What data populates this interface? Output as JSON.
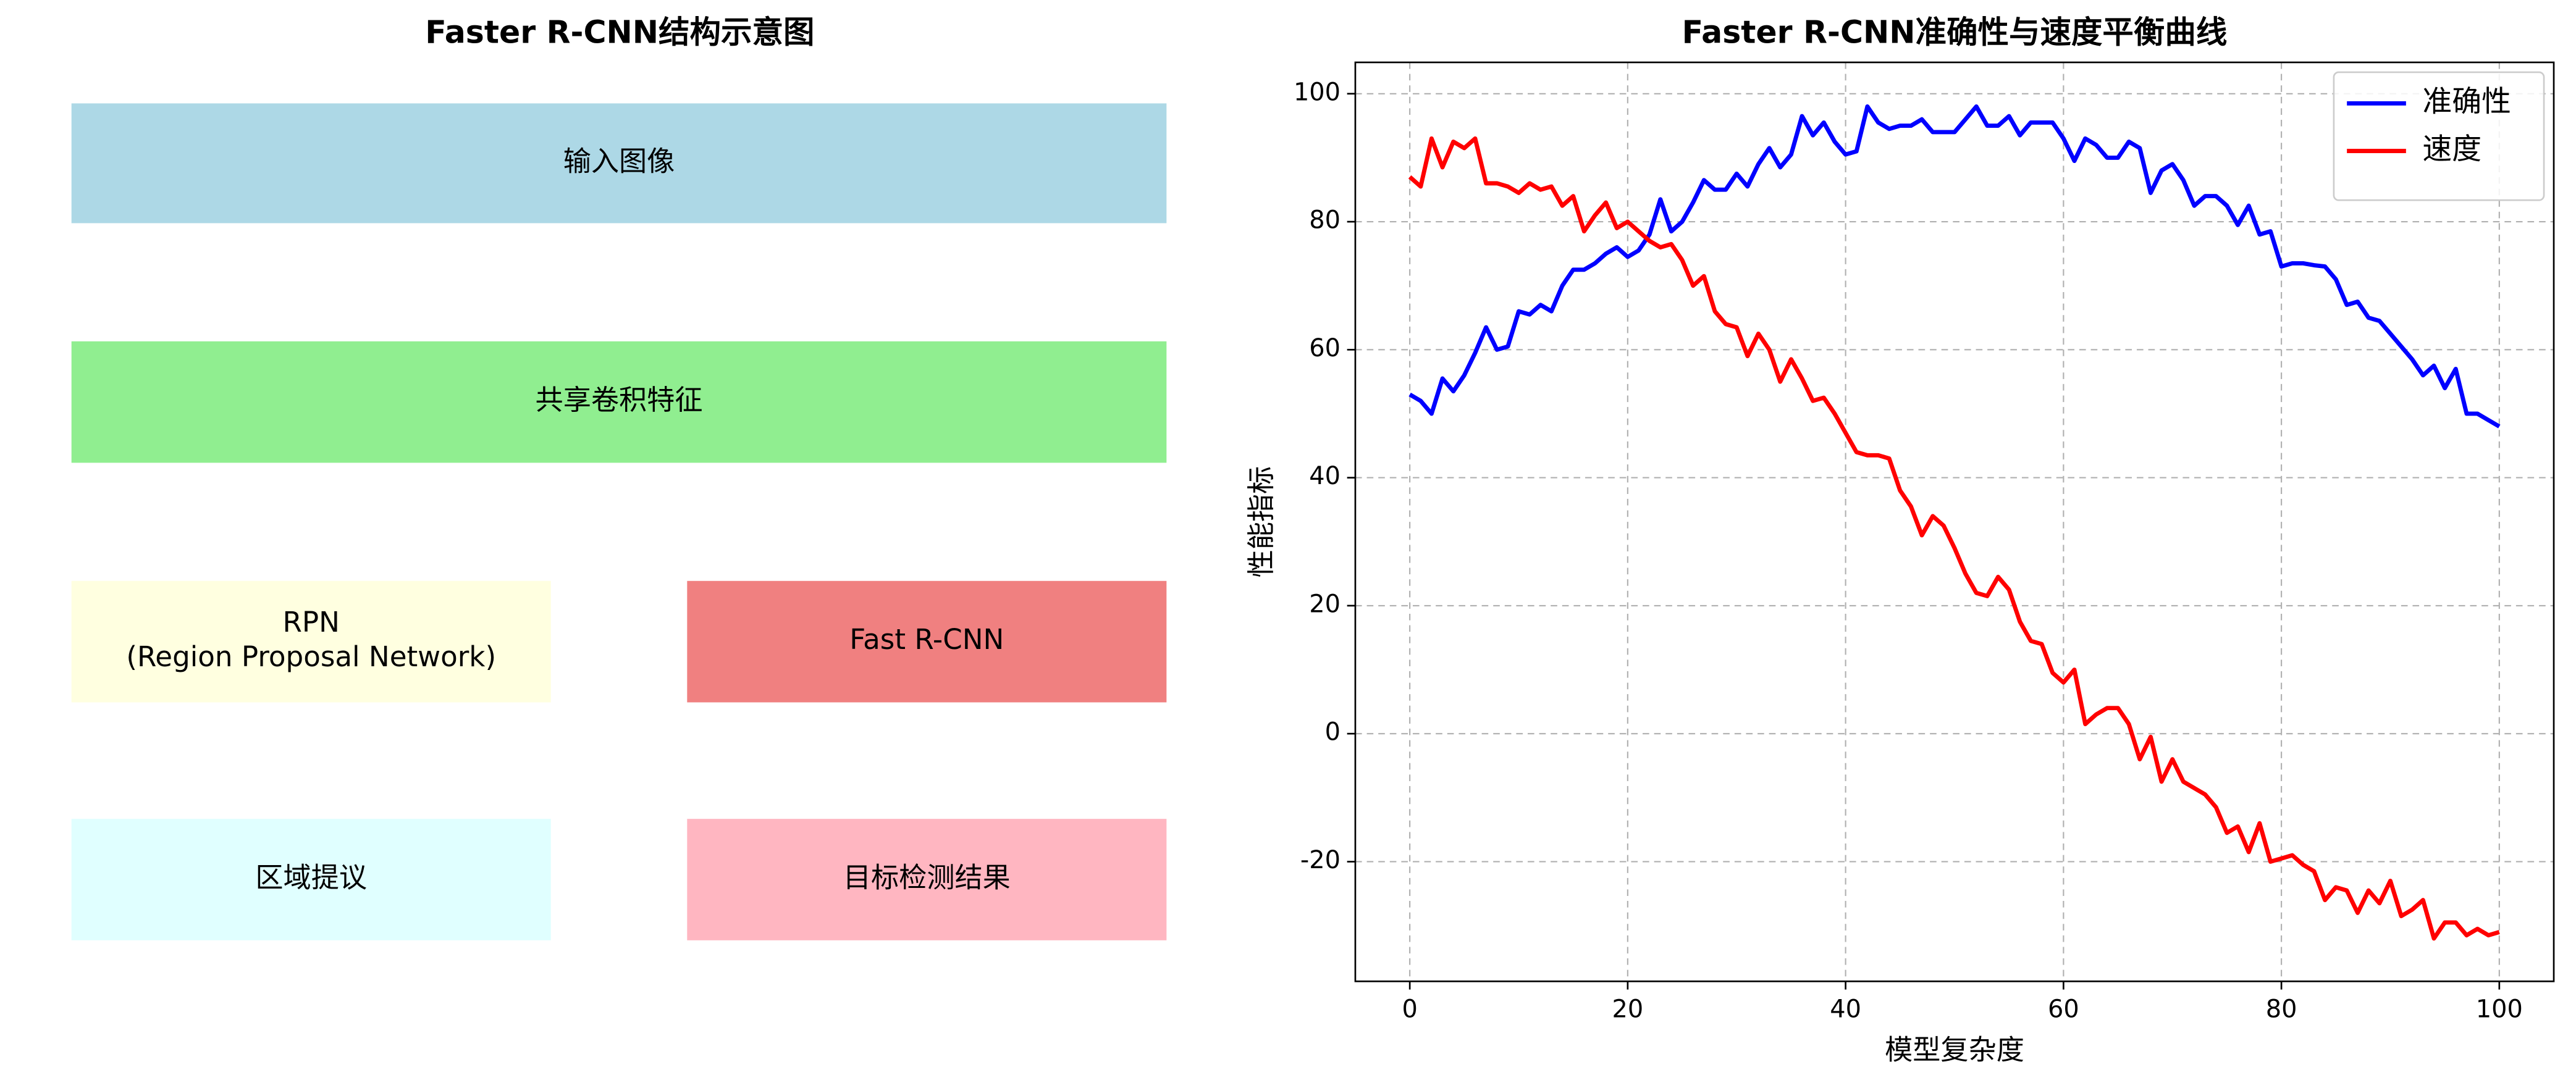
{
  "diagram": {
    "title": "Faster R-CNN结构示意图",
    "nodes": [
      {
        "label": [
          "输入图像"
        ],
        "color": "#add8e6"
      },
      {
        "label": [
          "共享卷积特征"
        ],
        "color": "#90ee90"
      },
      {
        "label": [
          "RPN",
          "(Region Proposal Network)"
        ],
        "color": "#ffffe0"
      },
      {
        "label": [
          "Fast R-CNN"
        ],
        "color": "#f08080"
      },
      {
        "label": [
          "区域提议"
        ],
        "color": "#e0ffff"
      },
      {
        "label": [
          "目标检测结果"
        ],
        "color": "#ffb6c1"
      }
    ]
  },
  "chart_data": {
    "type": "line",
    "title": "Faster R-CNN准确性与速度平衡曲线",
    "xlabel": "模型复杂度",
    "ylabel": "性能指标",
    "x": [
      0,
      1,
      2,
      3,
      4,
      5,
      6,
      7,
      8,
      9,
      10,
      11,
      12,
      13,
      14,
      15,
      16,
      17,
      18,
      19,
      20,
      21,
      22,
      23,
      24,
      25,
      26,
      27,
      28,
      29,
      30,
      31,
      32,
      33,
      34,
      35,
      36,
      37,
      38,
      39,
      40,
      41,
      42,
      43,
      44,
      45,
      46,
      47,
      48,
      49,
      50,
      51,
      52,
      53,
      54,
      55,
      56,
      57,
      58,
      59,
      60,
      61,
      62,
      63,
      64,
      65,
      66,
      67,
      68,
      69,
      70,
      71,
      72,
      73,
      74,
      75,
      76,
      77,
      78,
      79,
      80,
      81,
      82,
      83,
      84,
      85,
      86,
      87,
      88,
      89,
      90,
      91,
      92,
      93,
      94,
      95,
      96,
      97,
      98,
      99,
      100
    ],
    "series": [
      {
        "name": "准确性",
        "color": "#0000ff",
        "values": [
          53,
          52,
          50,
          55.5,
          53.5,
          56,
          59.5,
          63.5,
          60,
          60.5,
          66,
          65.5,
          67,
          66,
          70,
          72.5,
          72.5,
          73.5,
          75,
          76,
          74.5,
          75.5,
          78,
          83.5,
          78.5,
          80,
          83,
          86.5,
          85,
          85,
          87.5,
          85.5,
          89,
          91.5,
          88.5,
          90.5,
          96.5,
          93.5,
          95.5,
          92.5,
          90.5,
          91,
          98,
          95.5,
          94.5,
          95,
          95,
          96,
          94,
          94,
          94,
          96,
          98,
          95,
          95,
          96.5,
          93.5,
          95.5,
          95.5,
          95.5,
          93,
          89.5,
          93,
          92,
          90,
          90,
          92.5,
          91.5,
          84.5,
          88,
          89,
          86.5,
          82.5,
          84,
          84,
          82.5,
          79.5,
          82.5,
          78,
          78.5,
          73,
          73.5,
          73.5,
          73.2,
          73,
          71,
          67,
          67.5,
          65,
          64.5,
          62.5,
          60.5,
          58.5,
          56,
          57.5,
          54,
          57,
          50,
          50,
          49,
          48
        ]
      },
      {
        "name": "速度",
        "color": "#ff0000",
        "values": [
          87,
          85.5,
          93,
          88.5,
          92.5,
          91.5,
          93,
          86,
          86,
          85.5,
          84.5,
          86,
          85,
          85.5,
          82.5,
          84,
          78.5,
          81,
          83,
          79,
          80,
          78.5,
          77,
          76,
          76.5,
          74,
          70,
          71.5,
          66,
          64,
          63.5,
          59,
          62.5,
          60,
          55,
          58.5,
          55.5,
          52,
          52.5,
          50,
          47,
          44,
          43.5,
          43.5,
          43,
          38,
          35.5,
          31,
          34,
          32.5,
          29,
          25,
          22,
          21.5,
          24.5,
          22.5,
          17.5,
          14.5,
          14,
          9.5,
          8,
          10,
          1.5,
          3,
          4,
          4,
          1.5,
          -4,
          -0.5,
          -7.5,
          -4,
          -7.5,
          -8.5,
          -9.5,
          -11.5,
          -15.5,
          -14.5,
          -18.5,
          -14,
          -20,
          -19.5,
          -19,
          -20.5,
          -21.5,
          -26,
          -24,
          -24.5,
          -28,
          -24.5,
          -26.5,
          -23,
          -28.5,
          -27.5,
          -26,
          -32,
          -29.5,
          -29.5,
          -31.5,
          -30.5,
          -31.5,
          -31
        ]
      }
    ],
    "xlim": [
      -5,
      105
    ],
    "ylim": [
      -38.7,
      104.9
    ],
    "xticks": [
      0,
      20,
      40,
      60,
      80,
      100
    ],
    "yticks": [
      -20,
      0,
      20,
      40,
      60,
      80,
      100
    ],
    "grid": true,
    "legend": "upper right"
  }
}
